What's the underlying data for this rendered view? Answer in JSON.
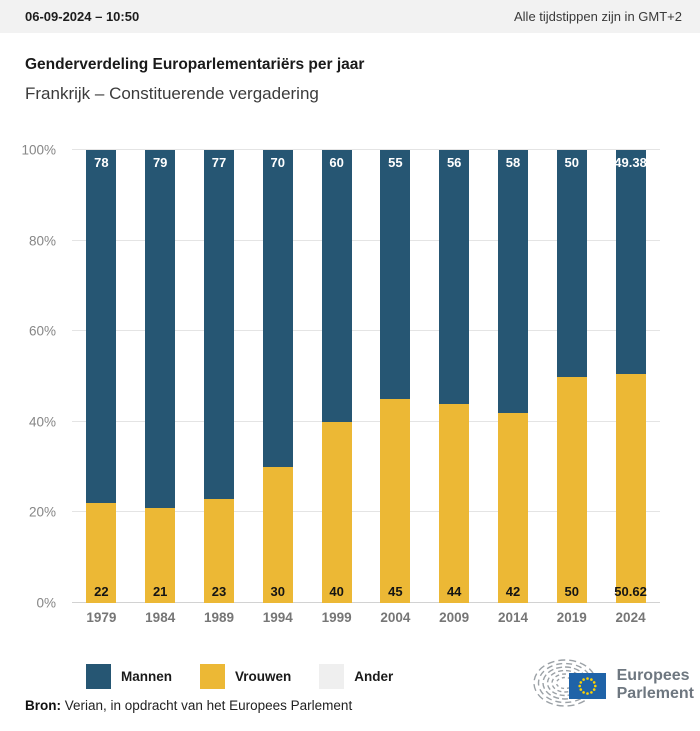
{
  "header": {
    "datetime": "06-09-2024 – 10:50",
    "timezone_note": "Alle tijdstippen zijn in GMT+2"
  },
  "chart_data": {
    "type": "bar",
    "stacked": true,
    "title": "Genderverdeling Europarlementariërs per jaar",
    "subtitle": "Frankrijk – Constituerende vergadering",
    "categories": [
      "1979",
      "1984",
      "1989",
      "1994",
      "1999",
      "2004",
      "2009",
      "2014",
      "2019",
      "2024"
    ],
    "series": [
      {
        "name": "Mannen",
        "color": "#265673",
        "values": [
          78,
          79,
          77,
          70,
          60,
          55,
          56,
          58,
          50,
          49.38
        ]
      },
      {
        "name": "Vrouwen",
        "color": "#ECB835",
        "values": [
          22,
          21,
          23,
          30,
          40,
          45,
          44,
          42,
          50,
          50.62
        ]
      },
      {
        "name": "Ander",
        "color": "#EFEFEF",
        "values": [
          0,
          0,
          0,
          0,
          0,
          0,
          0,
          0,
          0,
          0
        ]
      }
    ],
    "y_tick_labels": [
      "0%",
      "20%",
      "40%",
      "60%",
      "80%",
      "100%"
    ],
    "ylim": [
      0,
      100
    ],
    "grid": true,
    "legend_position": "bottom"
  },
  "footer": {
    "source_label": "Bron:",
    "source_text": "Verian, in opdracht van het Europees Parlement"
  },
  "logo": {
    "line1": "Europees",
    "line2": "Parlement"
  },
  "colors": {
    "men": "#265673",
    "women": "#ECB835",
    "other": "#EFEFEF",
    "header_bg": "#F2F2F2",
    "flag_blue": "#1F63A8",
    "star_yellow": "#FFD200"
  }
}
